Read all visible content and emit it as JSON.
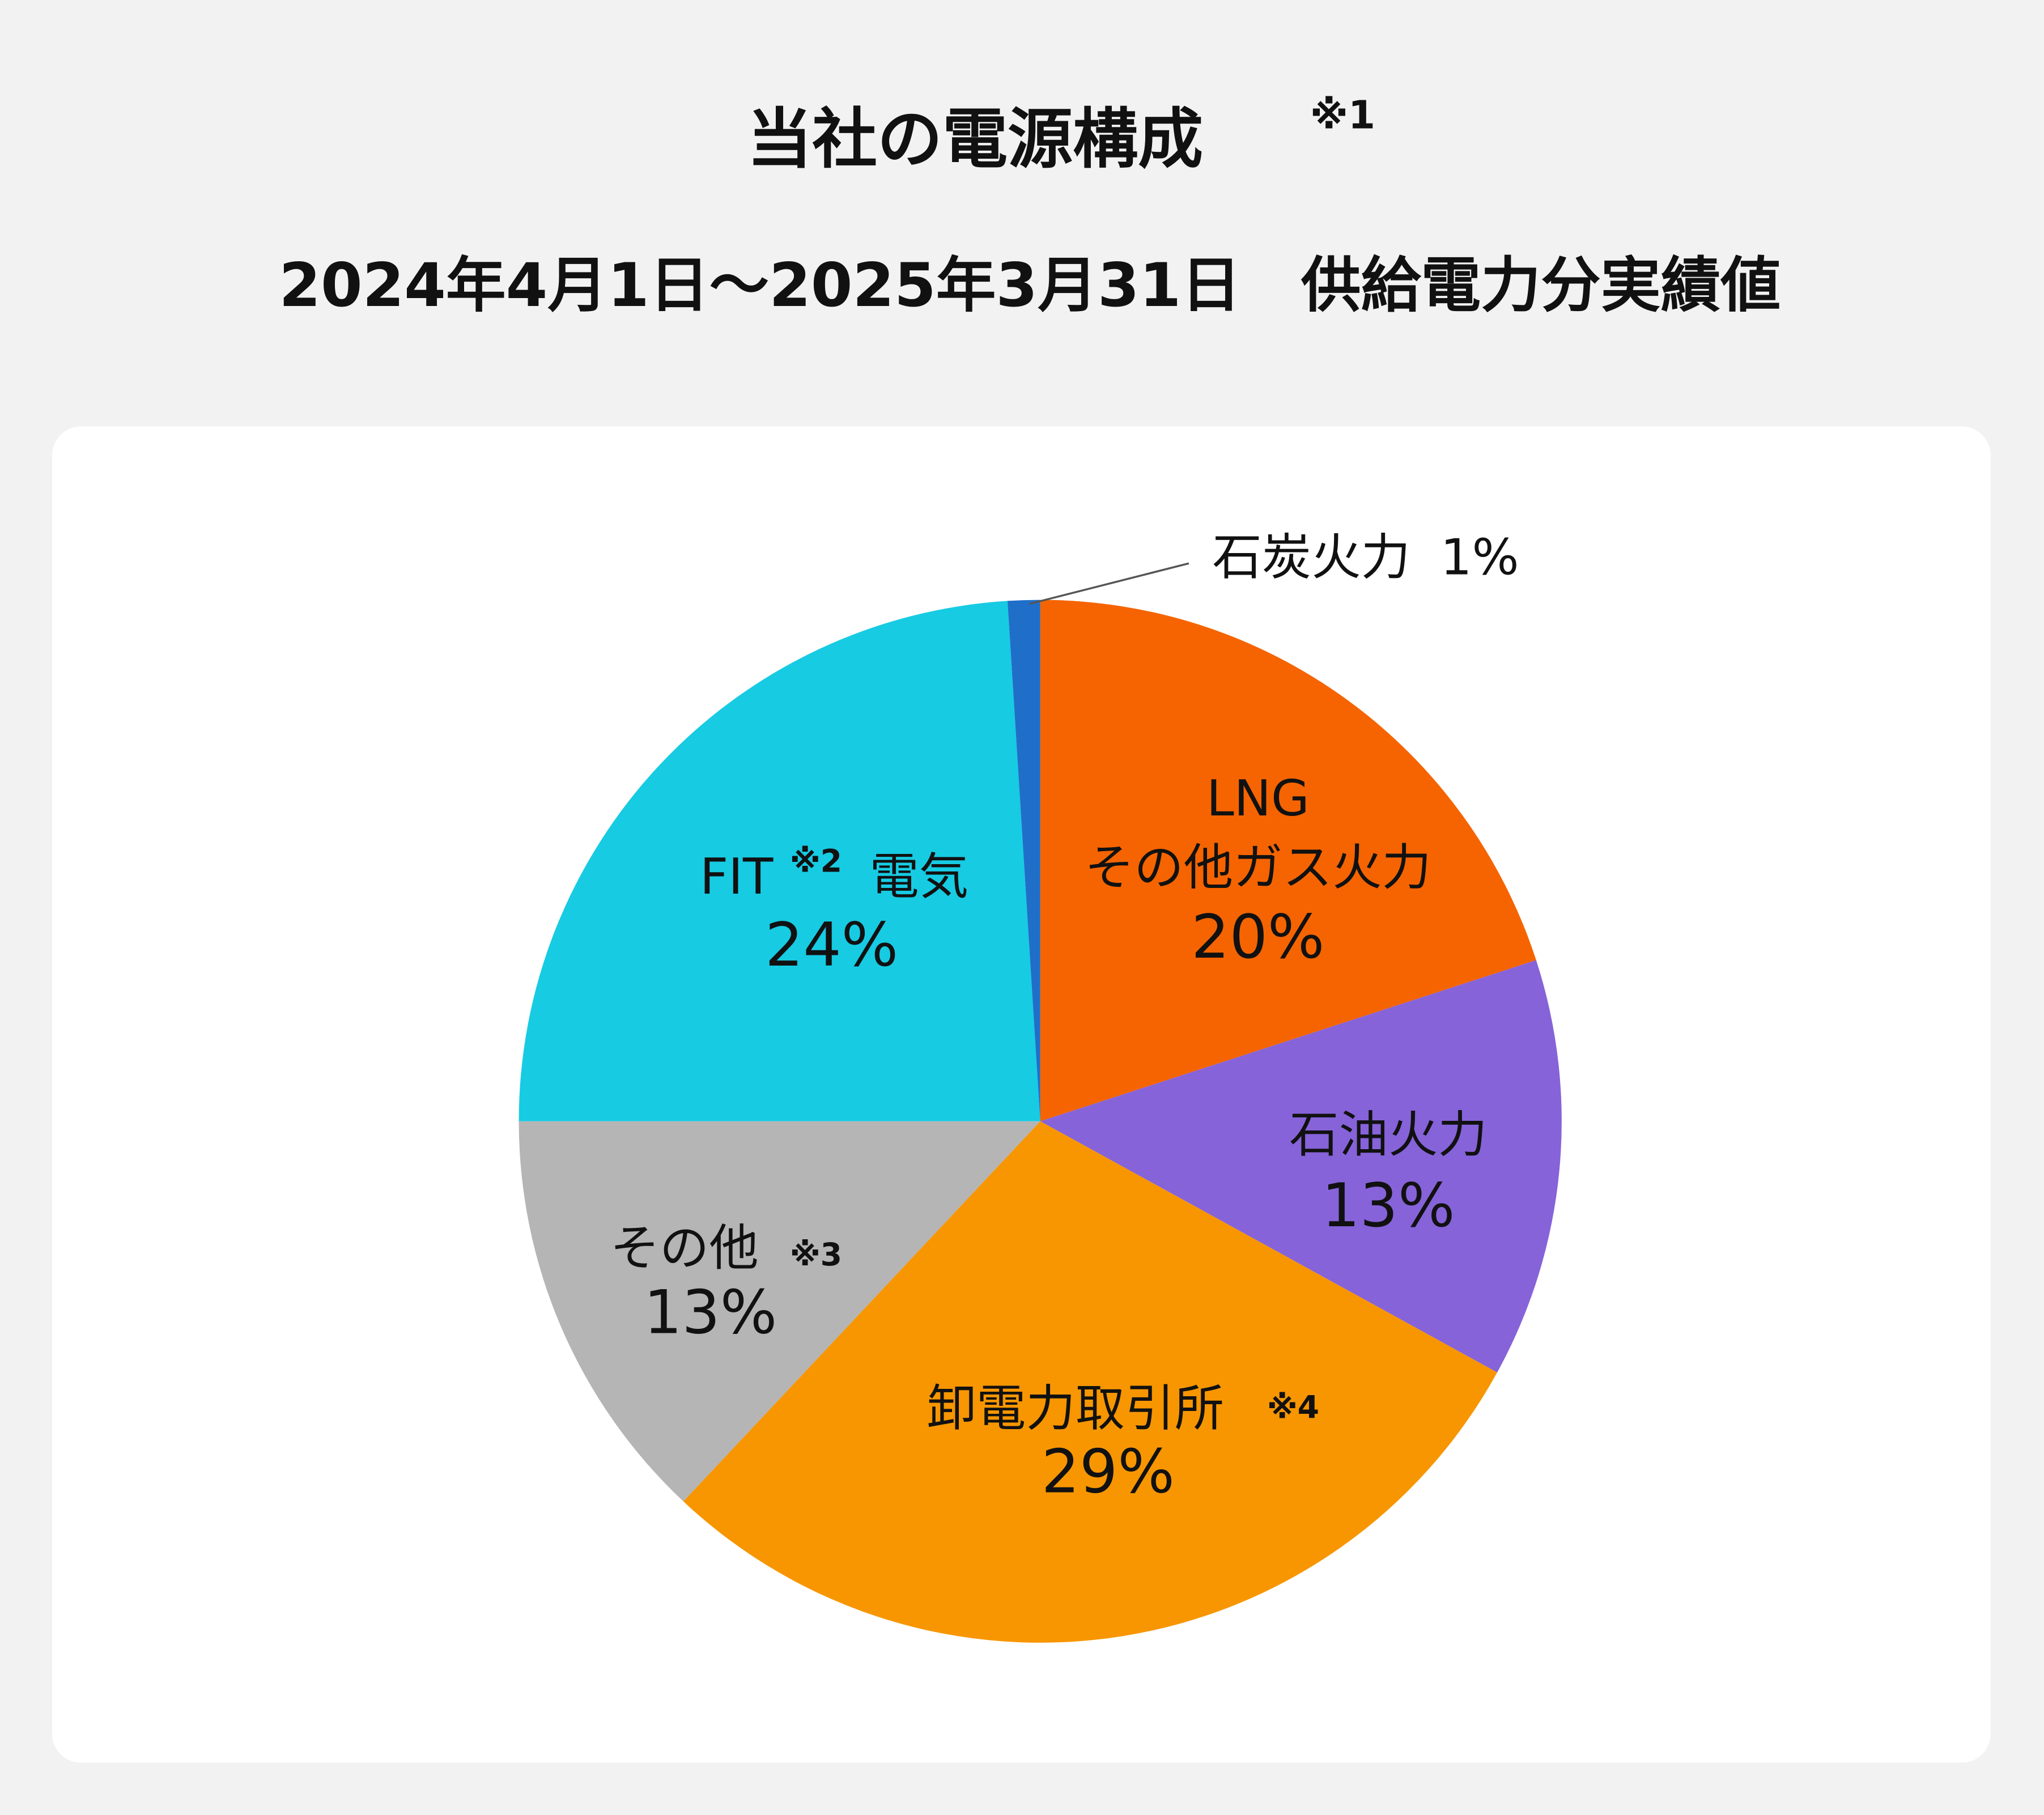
{
  "chart_data": {
    "type": "pie",
    "title": "当社の電源構成",
    "title_note": "※1",
    "subtitle": "2024年4月1日～2025年3月31日　供給電力分実績値",
    "categories": [
      [
        "LNG",
        "その他ガス火力"
      ],
      [
        "石油火力"
      ],
      [
        "卸電力取引所"
      ],
      [
        "その他"
      ],
      [
        "FIT",
        "電気"
      ],
      [
        "石炭火力"
      ]
    ],
    "notes": [
      null,
      null,
      "※4",
      "※3",
      "※2",
      null
    ],
    "values": [
      20,
      13,
      29,
      13,
      24,
      1
    ],
    "value_labels": [
      "20%",
      "13%",
      "29%",
      "13%",
      "24%",
      "1%"
    ],
    "colors": [
      "#f56400",
      "#8663d9",
      "#f79600",
      "#b5b5b5",
      "#17cbe3",
      "#1f6fc9"
    ]
  }
}
